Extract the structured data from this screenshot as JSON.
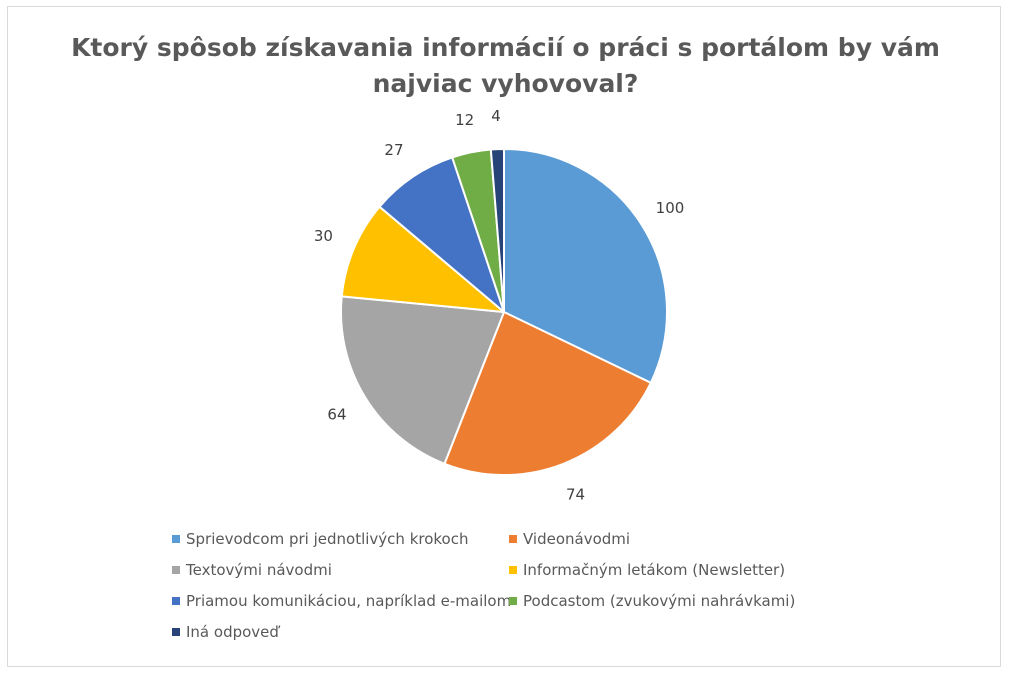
{
  "chart_data": {
    "type": "pie",
    "title": "Ktorý spôsob získavania informácií o práci s portálom by vám najviac vyhovoval?",
    "title_lines": [
      "Ktorý spôsob získavania informácií o práci s portálom by vám",
      "najviac vyhovoval?"
    ],
    "categories": [
      "Sprievodcom pri jednotlivých krokoch",
      "Videonávodmi",
      "Textovými návodmi",
      "Informačným letákom (Newsletter)",
      "Priamou komunikáciou, napríklad e-mailom",
      "Podcastom (zvukovými nahrávkami)",
      "Iná odpoveď"
    ],
    "values": [
      100,
      74,
      64,
      30,
      27,
      12,
      4
    ],
    "data_labels": [
      "100",
      "74",
      "64",
      "30",
      "27",
      "12",
      "4"
    ],
    "colors": [
      "#5b9bd5",
      "#ed7d31",
      "#a5a5a5",
      "#ffc000",
      "#4472c4",
      "#70ad47",
      "#264478"
    ],
    "legend_position": "bottom",
    "start_angle": "12 o'clock",
    "direction": "clockwise"
  }
}
